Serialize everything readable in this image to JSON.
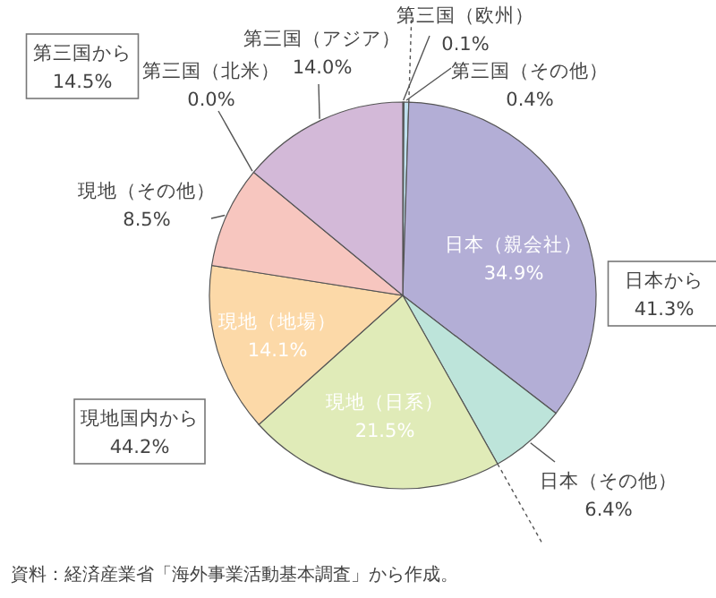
{
  "chart_data": {
    "type": "pie",
    "categories": [
      "第三国（欧州）",
      "第三国（その他）",
      "日本（親会社）",
      "日本（その他）",
      "現地（日系）",
      "現地（地場）",
      "現地（その他）",
      "第三国（北米）",
      "第三国（アジア）"
    ],
    "values": [
      0.1,
      0.4,
      34.9,
      6.4,
      21.5,
      14.1,
      8.5,
      0.0,
      14.0
    ],
    "value_labels": [
      "0.1%",
      "0.4%",
      "34.9%",
      "6.4%",
      "21.5%",
      "14.1%",
      "8.5%",
      "0.0%",
      "14.0%"
    ],
    "colors": [
      "#4f8f96",
      "#bfe0ee",
      "#b3aed6",
      "#bde4da",
      "#e0ebb8",
      "#fcd9a8",
      "#f7c6bf",
      "#d3b9d8",
      "#d3b9d8"
    ],
    "annotations": [
      "第三国から\n14.5%",
      "日本から\n41.3%",
      "現地国内から\n44.2%",
      "資料：経済産業省「海外事業活動基本調査」から作成。"
    ]
  }
}
